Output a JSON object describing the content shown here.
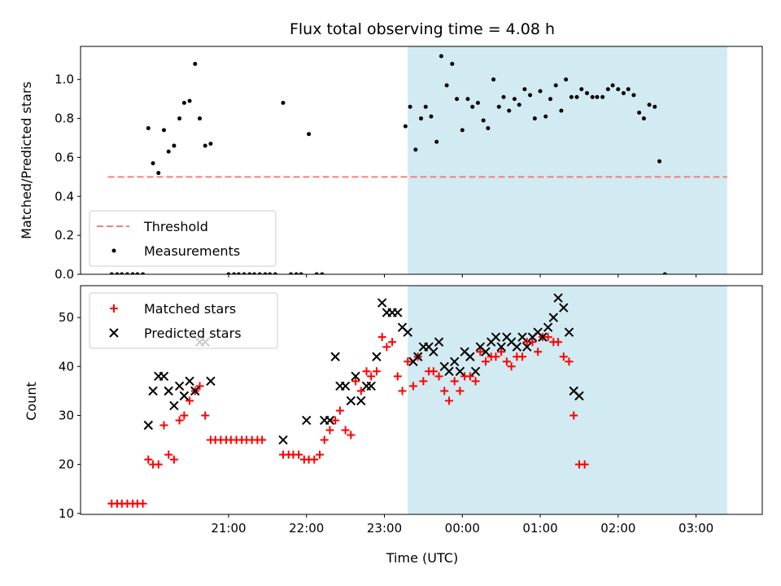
{
  "chart_data": [
    {
      "type": "scatter",
      "title": "Flux total observing time = 4.08 h",
      "xlabel": "",
      "ylabel": "Matched/Predicted stars",
      "ylim": [
        0,
        1.17
      ],
      "yticks": [
        0.0,
        0.2,
        0.4,
        0.6,
        0.8,
        1.0
      ],
      "ytick_labels": [
        "0.0",
        "0.2",
        "0.4",
        "0.6",
        "0.8",
        "1.0"
      ],
      "x_unit": "hours after 00:00 UTC",
      "xlim": [
        -4.9,
        3.85
      ],
      "shaded_span": [
        -0.7,
        3.4
      ],
      "shade_color": "#add8e6",
      "threshold": {
        "name": "Threshold",
        "y": 0.5,
        "x_range": [
          -4.55,
          3.4
        ],
        "color": "#f08080",
        "style": "dashed"
      },
      "series": [
        {
          "name": "Measurements",
          "color": "#000000",
          "marker": "dot",
          "points": [
            [
              -4.5,
              0
            ],
            [
              -4.43,
              0
            ],
            [
              -4.37,
              0
            ],
            [
              -4.3,
              0
            ],
            [
              -4.23,
              0
            ],
            [
              -4.17,
              0
            ],
            [
              -4.1,
              0
            ],
            [
              -4.03,
              0.75
            ],
            [
              -3.97,
              0.57
            ],
            [
              -3.9,
              0.52
            ],
            [
              -3.83,
              0.74
            ],
            [
              -3.77,
              0.63
            ],
            [
              -3.7,
              0.66
            ],
            [
              -3.63,
              0.8
            ],
            [
              -3.57,
              0.88
            ],
            [
              -3.5,
              0.89
            ],
            [
              -3.43,
              1.08
            ],
            [
              -3.37,
              0.8
            ],
            [
              -3.3,
              0.66
            ],
            [
              -3.23,
              0.67
            ],
            [
              -3.0,
              0
            ],
            [
              -2.93,
              0
            ],
            [
              -2.87,
              0
            ],
            [
              -2.8,
              0
            ],
            [
              -2.73,
              0
            ],
            [
              -2.67,
              0
            ],
            [
              -2.6,
              0
            ],
            [
              -2.53,
              0
            ],
            [
              -2.47,
              0
            ],
            [
              -2.4,
              0
            ],
            [
              -2.3,
              0.88
            ],
            [
              -2.2,
              0
            ],
            [
              -2.13,
              0
            ],
            [
              -2.07,
              0
            ],
            [
              -1.97,
              0.72
            ],
            [
              -1.87,
              0
            ],
            [
              -1.8,
              0
            ],
            [
              -0.73,
              0.76
            ],
            [
              -0.67,
              0.86
            ],
            [
              -0.6,
              0.64
            ],
            [
              -0.53,
              0.8
            ],
            [
              -0.47,
              0.86
            ],
            [
              -0.4,
              0.81
            ],
            [
              -0.33,
              0.68
            ],
            [
              -0.27,
              1.12
            ],
            [
              -0.2,
              0.97
            ],
            [
              -0.13,
              1.08
            ],
            [
              -0.07,
              0.9
            ],
            [
              0.0,
              0.74
            ],
            [
              0.07,
              0.9
            ],
            [
              0.13,
              0.86
            ],
            [
              0.2,
              0.88
            ],
            [
              0.27,
              0.79
            ],
            [
              0.33,
              0.75
            ],
            [
              0.4,
              1.0
            ],
            [
              0.47,
              0.86
            ],
            [
              0.53,
              0.91
            ],
            [
              0.6,
              0.84
            ],
            [
              0.67,
              0.9
            ],
            [
              0.73,
              0.87
            ],
            [
              0.8,
              0.95
            ],
            [
              0.87,
              0.92
            ],
            [
              0.93,
              0.8
            ],
            [
              1.0,
              0.94
            ],
            [
              1.07,
              0.81
            ],
            [
              1.13,
              0.9
            ],
            [
              1.2,
              0.97
            ],
            [
              1.27,
              0.84
            ],
            [
              1.33,
              1.0
            ],
            [
              1.4,
              0.91
            ],
            [
              1.47,
              0.91
            ],
            [
              1.53,
              0.95
            ],
            [
              1.6,
              0.93
            ],
            [
              1.67,
              0.91
            ],
            [
              1.73,
              0.91
            ],
            [
              1.8,
              0.91
            ],
            [
              1.87,
              0.95
            ],
            [
              1.93,
              0.97
            ],
            [
              2.0,
              0.95
            ],
            [
              2.07,
              0.93
            ],
            [
              2.13,
              0.95
            ],
            [
              2.2,
              0.92
            ],
            [
              2.27,
              0.83
            ],
            [
              2.33,
              0.8
            ],
            [
              2.4,
              0.87
            ],
            [
              2.47,
              0.86
            ],
            [
              2.53,
              0.58
            ],
            [
              2.6,
              0.0
            ]
          ]
        }
      ],
      "legend": {
        "placement": "lower left",
        "entries": [
          "Threshold",
          "Measurements"
        ]
      }
    },
    {
      "type": "scatter",
      "title": "",
      "xlabel": "Time (UTC)",
      "ylabel": "Count",
      "ylim": [
        9.8,
        56.5
      ],
      "yticks": [
        10,
        20,
        30,
        40,
        50
      ],
      "ytick_labels": [
        "10",
        "20",
        "30",
        "40",
        "50"
      ],
      "x_unit": "hours after 00:00 UTC",
      "xlim": [
        -4.9,
        3.85
      ],
      "xticks": [
        -3,
        -2,
        -1,
        0,
        1,
        2,
        3
      ],
      "xtick_labels": [
        "21:00",
        "22:00",
        "23:00",
        "00:00",
        "01:00",
        "02:00",
        "03:00"
      ],
      "shaded_span": [
        -0.7,
        3.4
      ],
      "shade_color": "#add8e6",
      "series": [
        {
          "name": "Matched stars",
          "color": "#ff0000",
          "marker": "plus",
          "points": [
            [
              -4.5,
              12
            ],
            [
              -4.43,
              12
            ],
            [
              -4.37,
              12
            ],
            [
              -4.3,
              12
            ],
            [
              -4.23,
              12
            ],
            [
              -4.17,
              12
            ],
            [
              -4.1,
              12
            ],
            [
              -4.03,
              21
            ],
            [
              -3.97,
              20
            ],
            [
              -3.9,
              20
            ],
            [
              -3.83,
              28
            ],
            [
              -3.77,
              22
            ],
            [
              -3.7,
              21
            ],
            [
              -3.63,
              29
            ],
            [
              -3.57,
              30
            ],
            [
              -3.5,
              33
            ],
            [
              -3.43,
              35
            ],
            [
              -3.37,
              36
            ],
            [
              -3.3,
              30
            ],
            [
              -3.23,
              25
            ],
            [
              -3.17,
              25
            ],
            [
              -3.1,
              25
            ],
            [
              -3.03,
              25
            ],
            [
              -2.97,
              25
            ],
            [
              -2.9,
              25
            ],
            [
              -2.83,
              25
            ],
            [
              -2.77,
              25
            ],
            [
              -2.7,
              25
            ],
            [
              -2.63,
              25
            ],
            [
              -2.57,
              25
            ],
            [
              -2.3,
              22
            ],
            [
              -2.23,
              22
            ],
            [
              -2.17,
              22
            ],
            [
              -2.1,
              22
            ],
            [
              -2.03,
              21
            ],
            [
              -1.97,
              21
            ],
            [
              -1.9,
              21
            ],
            [
              -1.83,
              22
            ],
            [
              -1.77,
              25
            ],
            [
              -1.7,
              27
            ],
            [
              -1.63,
              29
            ],
            [
              -1.57,
              31
            ],
            [
              -1.5,
              27
            ],
            [
              -1.43,
              26
            ],
            [
              -1.37,
              37
            ],
            [
              -1.3,
              35
            ],
            [
              -1.23,
              39
            ],
            [
              -1.17,
              38
            ],
            [
              -1.1,
              39
            ],
            [
              -1.03,
              46
            ],
            [
              -0.97,
              44
            ],
            [
              -0.9,
              45
            ],
            [
              -0.83,
              38
            ],
            [
              -0.77,
              35
            ],
            [
              -0.7,
              41
            ],
            [
              -0.63,
              36
            ],
            [
              -0.57,
              42
            ],
            [
              -0.5,
              37
            ],
            [
              -0.43,
              39
            ],
            [
              -0.37,
              39
            ],
            [
              -0.3,
              38
            ],
            [
              -0.23,
              35
            ],
            [
              -0.17,
              33
            ],
            [
              -0.1,
              37
            ],
            [
              -0.03,
              35
            ],
            [
              0.03,
              38
            ],
            [
              0.1,
              38
            ],
            [
              0.17,
              37
            ],
            [
              0.23,
              43
            ],
            [
              0.3,
              41
            ],
            [
              0.37,
              42
            ],
            [
              0.43,
              42
            ],
            [
              0.5,
              43
            ],
            [
              0.57,
              41
            ],
            [
              0.63,
              40
            ],
            [
              0.7,
              42
            ],
            [
              0.77,
              42
            ],
            [
              0.83,
              45
            ],
            [
              0.9,
              45
            ],
            [
              0.97,
              43
            ],
            [
              1.03,
              46
            ],
            [
              1.1,
              46
            ],
            [
              1.17,
              45
            ],
            [
              1.23,
              45
            ],
            [
              1.3,
              42
            ],
            [
              1.37,
              41
            ],
            [
              1.43,
              30
            ],
            [
              1.5,
              20
            ],
            [
              1.57,
              20
            ]
          ]
        },
        {
          "name": "Predicted stars",
          "color": "#000000",
          "marker": "x",
          "points": [
            [
              -4.03,
              28
            ],
            [
              -3.97,
              35
            ],
            [
              -3.9,
              38
            ],
            [
              -3.83,
              38
            ],
            [
              -3.77,
              35
            ],
            [
              -3.7,
              32
            ],
            [
              -3.63,
              36
            ],
            [
              -3.57,
              34
            ],
            [
              -3.5,
              37
            ],
            [
              -3.43,
              35
            ],
            [
              -3.37,
              45
            ],
            [
              -3.3,
              45
            ],
            [
              -3.23,
              37
            ],
            [
              -2.3,
              25
            ],
            [
              -2.0,
              29
            ],
            [
              -1.77,
              29
            ],
            [
              -1.7,
              29
            ],
            [
              -1.63,
              42
            ],
            [
              -1.57,
              36
            ],
            [
              -1.5,
              36
            ],
            [
              -1.43,
              33
            ],
            [
              -1.37,
              38
            ],
            [
              -1.3,
              33
            ],
            [
              -1.23,
              36
            ],
            [
              -1.17,
              36
            ],
            [
              -1.1,
              42
            ],
            [
              -1.03,
              53
            ],
            [
              -0.97,
              51
            ],
            [
              -0.9,
              51
            ],
            [
              -0.83,
              51
            ],
            [
              -0.77,
              48
            ],
            [
              -0.7,
              47
            ],
            [
              -0.63,
              41
            ],
            [
              -0.57,
              42
            ],
            [
              -0.5,
              44
            ],
            [
              -0.43,
              44
            ],
            [
              -0.37,
              43
            ],
            [
              -0.3,
              45
            ],
            [
              -0.23,
              40
            ],
            [
              -0.17,
              39
            ],
            [
              -0.1,
              41
            ],
            [
              -0.03,
              39
            ],
            [
              0.03,
              43
            ],
            [
              0.1,
              42
            ],
            [
              0.17,
              39
            ],
            [
              0.23,
              44
            ],
            [
              0.3,
              43
            ],
            [
              0.37,
              45
            ],
            [
              0.43,
              46
            ],
            [
              0.5,
              44
            ],
            [
              0.57,
              46
            ],
            [
              0.63,
              45
            ],
            [
              0.7,
              44
            ],
            [
              0.77,
              46
            ],
            [
              0.83,
              44
            ],
            [
              0.9,
              46
            ],
            [
              0.97,
              47
            ],
            [
              1.03,
              46
            ],
            [
              1.1,
              48
            ],
            [
              1.17,
              50
            ],
            [
              1.23,
              54
            ],
            [
              1.3,
              52
            ],
            [
              1.37,
              47
            ],
            [
              1.43,
              35
            ],
            [
              1.5,
              34
            ]
          ]
        }
      ],
      "legend": {
        "placement": "upper left",
        "entries": [
          "Matched stars",
          "Predicted stars"
        ]
      }
    }
  ]
}
